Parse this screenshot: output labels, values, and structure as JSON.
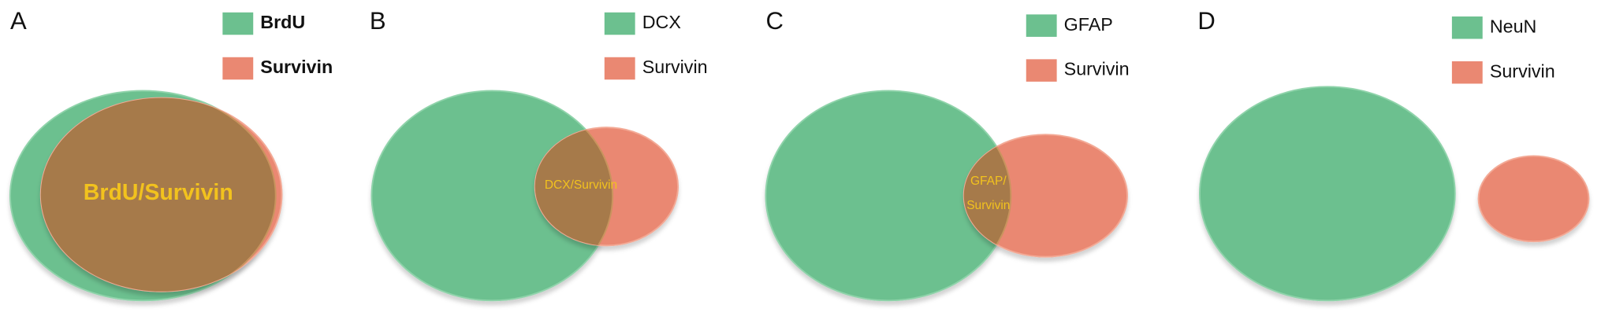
{
  "panels": [
    {
      "label": "A",
      "legend": [
        "BrdU",
        "Survivin"
      ],
      "overlap_label": [
        "BrdU/Survivin"
      ]
    },
    {
      "label": "B",
      "legend": [
        "DCX",
        "Survivin"
      ],
      "overlap_label": [
        "DCX/Survivin"
      ]
    },
    {
      "label": "C",
      "legend": [
        "GFAP",
        "Survivin"
      ],
      "overlap_label": [
        "GFAP/",
        "Survivin"
      ]
    },
    {
      "label": "D",
      "legend": [
        "NeuN",
        "Survivin"
      ]
    }
  ]
}
